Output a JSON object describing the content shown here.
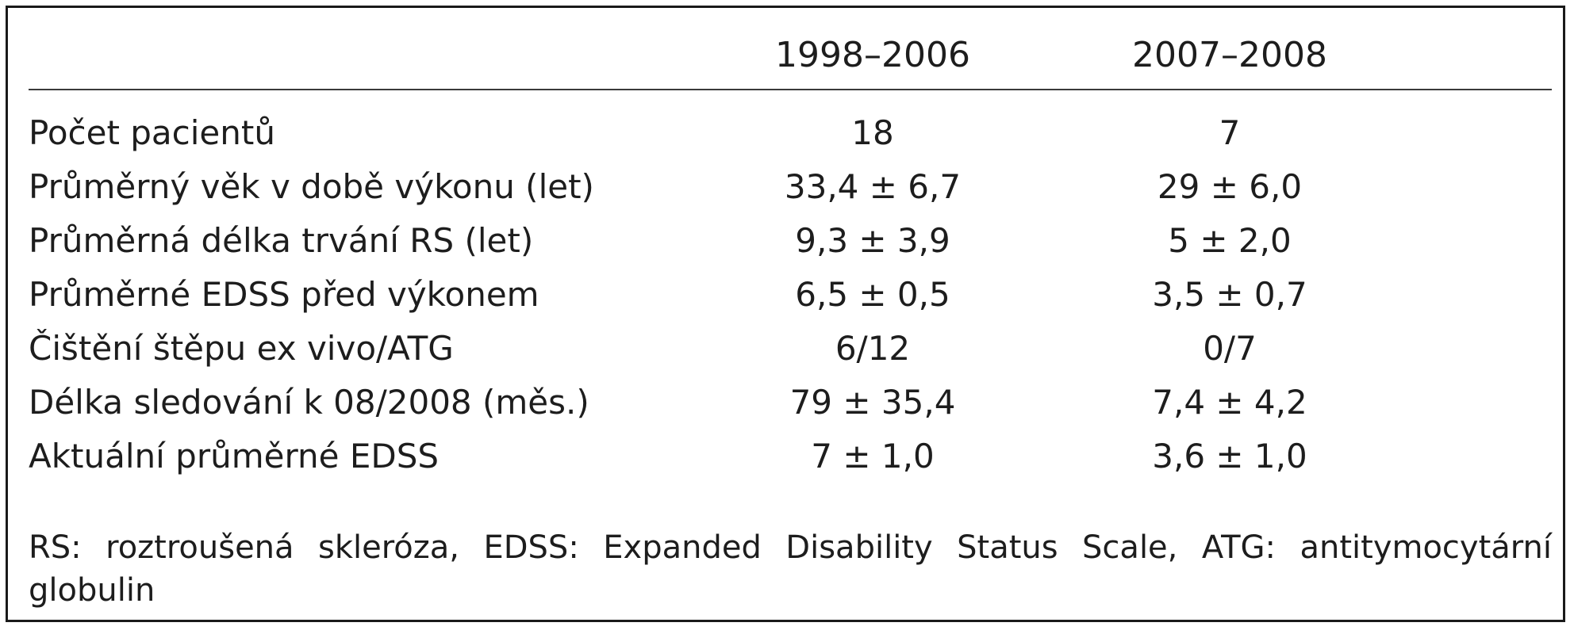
{
  "table": {
    "headers": [
      "",
      "1998–2006",
      "2007–2008"
    ],
    "rows": [
      {
        "label": "Počet pacientů",
        "v1": "18",
        "v2": "7"
      },
      {
        "label": "Průměrný věk v době výkonu (let)",
        "v1": "33,4 ± 6,7",
        "v2": "29 ± 6,0"
      },
      {
        "label": "Průměrná délka trvání RS (let)",
        "v1": "9,3 ± 3,9",
        "v2": "5 ± 2,0"
      },
      {
        "label": "Průměrné EDSS před výkonem",
        "v1": "6,5 ± 0,5",
        "v2": "3,5 ± 0,7"
      },
      {
        "label": "Čištění štěpu ex vivo/ATG",
        "v1": "6/12",
        "v2": "0/7"
      },
      {
        "label": "Délka sledování k 08/2008 (měs.)",
        "v1": "79 ± 35,4",
        "v2": "7,4 ± 4,2"
      },
      {
        "label": "Aktuální průměrné EDSS",
        "v1": "7 ± 1,0",
        "v2": "3,6 ± 1,0"
      }
    ],
    "footnote": "RS: roztroušená skleróza, EDSS: Expanded Disability Status Scale, ATG: antitymocytární globulin"
  }
}
